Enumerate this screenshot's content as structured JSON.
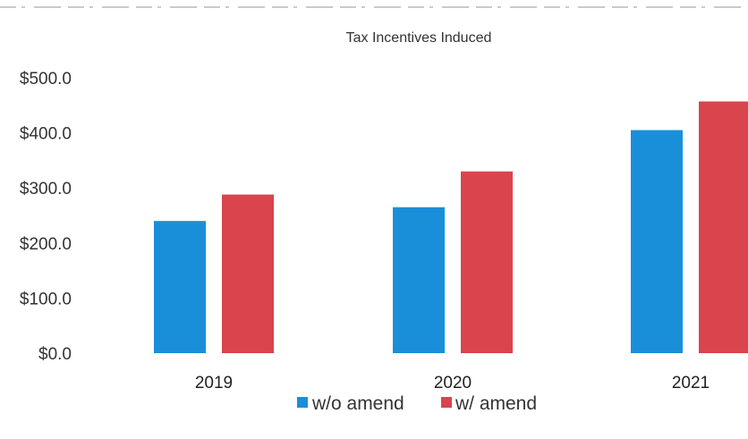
{
  "chart_data": {
    "type": "bar",
    "title": "Tax Incentives Induced",
    "xlabel": "",
    "ylabel": "",
    "categories": [
      "2019",
      "2020",
      "2021"
    ],
    "series": [
      {
        "name": "w/o amend",
        "values": [
          240,
          265,
          405
        ]
      },
      {
        "name": "w/ amend",
        "values": [
          288,
          330,
          457
        ]
      }
    ],
    "ylim": [
      0,
      500
    ],
    "yticks": [
      0,
      100,
      200,
      300,
      400,
      500
    ],
    "ytick_labels": [
      "$0.0",
      "$100.0",
      "$200.0",
      "$300.0",
      "$400.0",
      "$500.0"
    ],
    "grid": false,
    "legend_position": "bottom",
    "colors": [
      "#1a8fd9",
      "#d9444d"
    ]
  }
}
